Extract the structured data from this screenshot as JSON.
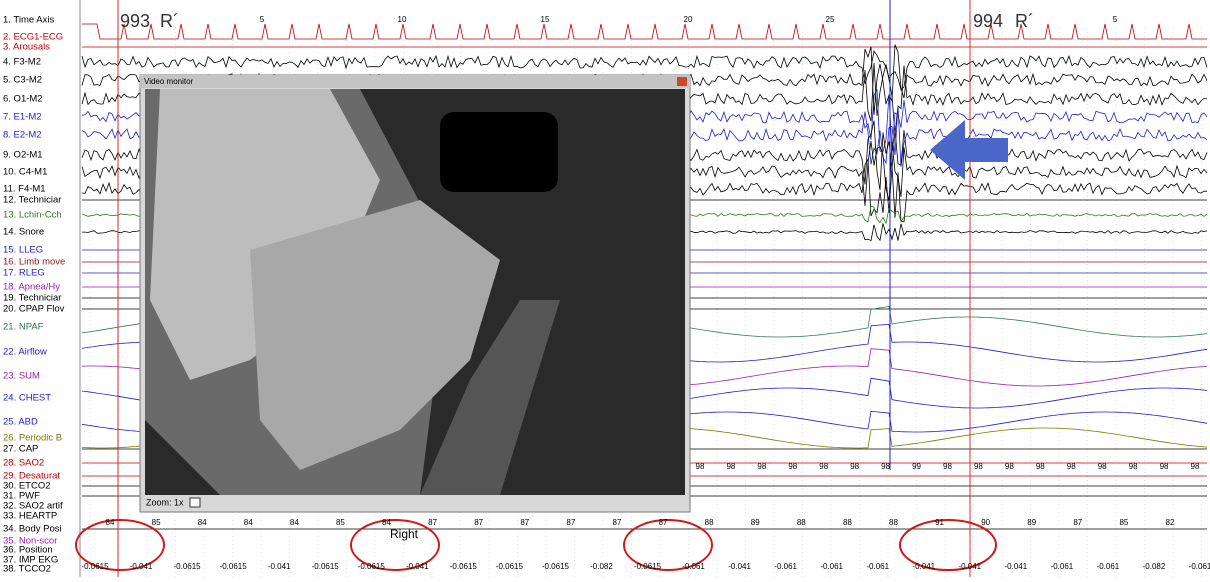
{
  "window": {
    "channels": [
      {
        "label": "1. Time Axis",
        "color": "#000000"
      },
      {
        "label": "2. ECG1-ECG",
        "color": "#c00000"
      },
      {
        "label": "3. Arousals",
        "color": "#c00000"
      },
      {
        "label": "4. F3-M2",
        "color": "#000000"
      },
      {
        "label": "5. C3-M2",
        "color": "#000000"
      },
      {
        "label": "6. O1-M2",
        "color": "#000000"
      },
      {
        "label": "7. E1-M2",
        "color": "#1f1fd0"
      },
      {
        "label": "8. E2-M2",
        "color": "#1f1fd0"
      },
      {
        "label": "9. O2-M1",
        "color": "#000000"
      },
      {
        "label": "10. C4-M1",
        "color": "#000000"
      },
      {
        "label": "11. F4-M1",
        "color": "#000000"
      },
      {
        "label": "12. Techniciar",
        "color": "#000000"
      },
      {
        "label": "13. Lchin-Cch",
        "color": "#2e7d1e"
      },
      {
        "label": "14. Snore",
        "color": "#000000"
      },
      {
        "label": "15. LLEG",
        "color": "#1f1fd0"
      },
      {
        "label": "16. Limb move",
        "color": "#8b1a1a"
      },
      {
        "label": "17. RLEG",
        "color": "#1f1fd0"
      },
      {
        "label": "18. Apnea/Hy",
        "color": "#9b1fb0"
      },
      {
        "label": "19. Techniciar",
        "color": "#000000"
      },
      {
        "label": "20. CPAP Flov",
        "color": "#000000"
      },
      {
        "label": "21. NPAF",
        "color": "#2e7d4f"
      },
      {
        "label": "22. Airflow",
        "color": "#1f1fd0"
      },
      {
        "label": "23. SUM",
        "color": "#9b1fb0"
      },
      {
        "label": "24. CHEST",
        "color": "#1f1fd0"
      },
      {
        "label": "25. ABD",
        "color": "#1f1fd0"
      },
      {
        "label": "26. Periodic B",
        "color": "#7a7a00"
      },
      {
        "label": "27. CAP",
        "color": "#000000"
      },
      {
        "label": "28. SAO2",
        "color": "#c00000"
      },
      {
        "label": "29. Desaturat",
        "color": "#c00000"
      },
      {
        "label": "30. ETCO2",
        "color": "#000000"
      },
      {
        "label": "31. PWF",
        "color": "#000000"
      },
      {
        "label": "32. SAO2 artif",
        "color": "#000000"
      },
      {
        "label": "33. HEARTP",
        "color": "#000000"
      },
      {
        "label": "34. Body Posi",
        "color": "#000000"
      },
      {
        "label": "35. Non-scor",
        "color": "#9b1fb0"
      },
      {
        "label": "36. Position",
        "color": "#000000"
      },
      {
        "label": "37. IMP EKG",
        "color": "#000000"
      },
      {
        "label": "38. TCCO2",
        "color": "#000000"
      }
    ],
    "epochs": [
      {
        "number": "993",
        "stage": "R´"
      },
      {
        "number": "994",
        "stage": "R´"
      }
    ],
    "time_ticks": [
      "5",
      "10",
      "15",
      "20",
      "25",
      "5"
    ],
    "video_monitor": {
      "title": "Video monitor",
      "zoom": "Zoom: 1x"
    },
    "annotation": "Right",
    "sao2_values": [
      "98",
      "98",
      "98",
      "98",
      "98",
      "98",
      "98",
      "99",
      "98",
      "98",
      "98",
      "98",
      "98",
      "98",
      "98",
      "98",
      "98"
    ],
    "body_values": [
      "84",
      "85",
      "84",
      "84",
      "84",
      "85",
      "84",
      "87",
      "87",
      "87",
      "87",
      "87",
      "87",
      "88",
      "89",
      "88",
      "88",
      "88",
      "91",
      "90",
      "89",
      "87",
      "85",
      "82"
    ],
    "tcco2_values": [
      "-0.0615",
      "-0.041",
      "-0.0615",
      "-0.0615",
      "-0.041",
      "-0.0615",
      "-0.0615",
      "-0.041",
      "-0.0615",
      "-0.0615",
      "-0.0615",
      "-0.082",
      "-0.0615",
      "-0.061",
      "-0.041",
      "-0.061",
      "-0.061",
      "-0.061",
      "-0.041",
      "-0.041",
      "-0.041",
      "-0.061",
      "-0.061",
      "-0.082",
      "-0.061"
    ]
  }
}
